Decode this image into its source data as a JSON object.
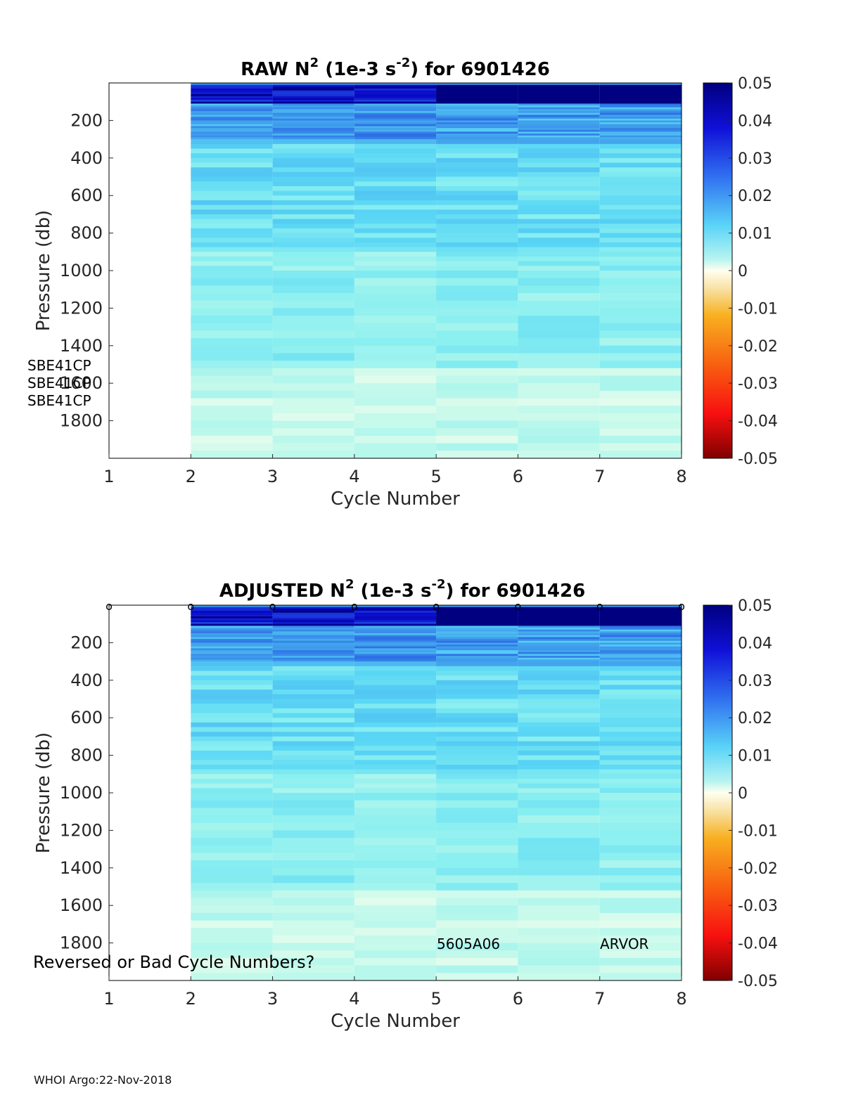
{
  "figure": {
    "footer": "WHOI Argo:22-Nov-2018"
  },
  "chart_data": [
    {
      "type": "heatmap",
      "panel": "raw",
      "title": {
        "prefix": "RAW N",
        "sup1": "2",
        "middle": " (1e-3 s",
        "sup2": "-2",
        "suffix": ") for 6901426"
      },
      "xlabel": "Cycle Number",
      "ylabel": "Pressure (db)",
      "xlim": [
        1,
        8
      ],
      "ylim": [
        2000,
        0
      ],
      "xticks": [
        "1",
        "2",
        "3",
        "4",
        "5",
        "6",
        "7",
        "8"
      ],
      "yticks": [
        "200",
        "400",
        "600",
        "800",
        "1000",
        "1200",
        "1400",
        "1600",
        "1800"
      ],
      "colorbar": {
        "ticks": [
          "0.05",
          "0.04",
          "0.03",
          "0.02",
          "0.01",
          "0",
          "-0.01",
          "-0.02",
          "-0.03",
          "-0.04",
          "-0.05"
        ],
        "range": [
          -0.05,
          0.05
        ]
      },
      "cycles": [
        2,
        3,
        4,
        5,
        6,
        7
      ],
      "profile_max_pressure": [
        2000,
        2000,
        2000,
        2000,
        2000,
        2000
      ],
      "annotations": [
        "SBE41CP",
        "SBE41CP",
        "SBE41CP"
      ],
      "cycle_markers": false
    },
    {
      "type": "heatmap",
      "panel": "adjusted",
      "title": {
        "prefix": "ADJUSTED N",
        "sup1": "2",
        "middle": " (1e-3 s",
        "sup2": "-2",
        "suffix": ") for 6901426"
      },
      "xlabel": "Cycle Number",
      "ylabel": "Pressure (db)",
      "xlim": [
        1,
        8
      ],
      "ylim": [
        2000,
        0
      ],
      "xticks": [
        "1",
        "2",
        "3",
        "4",
        "5",
        "6",
        "7",
        "8"
      ],
      "yticks": [
        "200",
        "400",
        "600",
        "800",
        "1000",
        "1200",
        "1400",
        "1600",
        "1800"
      ],
      "colorbar": {
        "ticks": [
          "0.05",
          "0.04",
          "0.03",
          "0.02",
          "0.01",
          "0",
          "-0.01",
          "-0.02",
          "-0.03",
          "-0.04",
          "-0.05"
        ],
        "range": [
          -0.05,
          0.05
        ]
      },
      "cycles": [
        2,
        3,
        4,
        5,
        6,
        7
      ],
      "profile_max_pressure": [
        2000,
        2000,
        2000,
        2000,
        2000,
        2000
      ],
      "marker_cycles": [
        1,
        2,
        3,
        4,
        5,
        6,
        7,
        8
      ],
      "marker_symbol": "o",
      "annotations": [
        "5605A06",
        "ARVOR",
        "Reversed or Bad Cycle Numbers?"
      ],
      "cycle_markers": true
    }
  ]
}
